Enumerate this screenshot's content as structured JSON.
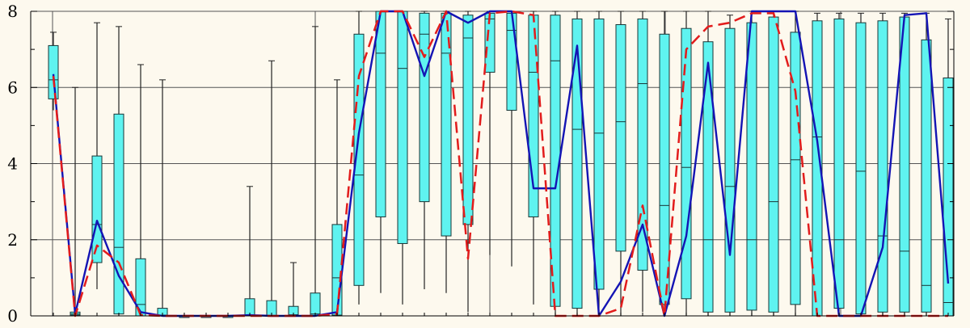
{
  "chart_data": {
    "type": "box",
    "title": "",
    "xlabel": "",
    "ylabel": "",
    "ylim": [
      0,
      8
    ],
    "yticks": [
      "0",
      "2",
      "4",
      "6",
      "8"
    ],
    "grid": true,
    "colors": {
      "box_fill": "#5ff3f0",
      "box_stroke": "#1a3535",
      "whisker": "#222222",
      "median_line": "#0d1f7a",
      "dashed_line": "#e21c1c",
      "grid": "#555555",
      "background": "#fdf9ee"
    },
    "boxes": [
      {
        "x": 1,
        "min": 5.4,
        "q1": 5.7,
        "median": 6.2,
        "q3": 7.1,
        "max": 7.45
      },
      {
        "x": 2,
        "min": 0.0,
        "q1": 0.02,
        "median": 0.05,
        "q3": 0.1,
        "max": 6.0
      },
      {
        "x": 3,
        "min": 0.7,
        "q1": 1.4,
        "median": 2.4,
        "q3": 4.2,
        "max": 7.7
      },
      {
        "x": 4,
        "min": 0.0,
        "q1": 0.05,
        "median": 1.8,
        "q3": 5.3,
        "max": 7.6
      },
      {
        "x": 5,
        "min": 0.0,
        "q1": 0.0,
        "median": 0.3,
        "q3": 1.5,
        "max": 6.6
      },
      {
        "x": 6,
        "min": 0.0,
        "q1": 0.0,
        "median": 0.02,
        "q3": 0.2,
        "max": 6.2
      },
      {
        "x": 7,
        "min": 0.0,
        "q1": 0.0,
        "median": 0.0,
        "q3": 0.0,
        "max": 0.0
      },
      {
        "x": 8,
        "min": 0.0,
        "q1": 0.0,
        "median": 0.0,
        "q3": 0.0,
        "max": 0.0
      },
      {
        "x": 9,
        "min": 0.0,
        "q1": 0.0,
        "median": 0.0,
        "q3": 0.0,
        "max": 0.0
      },
      {
        "x": 10,
        "min": 0.0,
        "q1": 0.0,
        "median": 0.02,
        "q3": 0.45,
        "max": 3.4
      },
      {
        "x": 11,
        "min": 0.0,
        "q1": 0.0,
        "median": 0.01,
        "q3": 0.4,
        "max": 6.7
      },
      {
        "x": 12,
        "min": 0.0,
        "q1": 0.0,
        "median": 0.03,
        "q3": 0.25,
        "max": 1.4
      },
      {
        "x": 13,
        "min": 0.0,
        "q1": 0.0,
        "median": 0.05,
        "q3": 0.6,
        "max": 7.6
      },
      {
        "x": 14,
        "min": 0.0,
        "q1": 0.02,
        "median": 1.0,
        "q3": 2.4,
        "max": 6.2
      },
      {
        "x": 15,
        "min": 0.3,
        "q1": 0.8,
        "median": 3.7,
        "q3": 7.4,
        "max": 8.0
      },
      {
        "x": 16,
        "min": 0.6,
        "q1": 2.6,
        "median": 6.9,
        "q3": 8.0,
        "max": 8.0
      },
      {
        "x": 17,
        "min": 0.3,
        "q1": 1.9,
        "median": 6.5,
        "q3": 8.0,
        "max": 8.0
      },
      {
        "x": 18,
        "min": 0.7,
        "q1": 3.0,
        "median": 7.4,
        "q3": 7.95,
        "max": 8.0
      },
      {
        "x": 19,
        "min": 0.6,
        "q1": 2.1,
        "median": 6.9,
        "q3": 7.95,
        "max": 8.0
      },
      {
        "x": 20,
        "min": 0.1,
        "q1": 2.4,
        "median": 7.3,
        "q3": 7.9,
        "max": 8.0
      },
      {
        "x": 21,
        "min": 1.6,
        "q1": 6.4,
        "median": 7.8,
        "q3": 7.95,
        "max": 8.0
      },
      {
        "x": 22,
        "min": 1.3,
        "q1": 5.4,
        "median": 7.5,
        "q3": 7.95,
        "max": 8.0
      },
      {
        "x": 23,
        "min": 0.3,
        "q1": 2.6,
        "median": 6.4,
        "q3": 7.9,
        "max": 8.0
      },
      {
        "x": 24,
        "min": 0.0,
        "q1": 0.25,
        "median": 6.7,
        "q3": 7.9,
        "max": 8.0
      },
      {
        "x": 25,
        "min": 0.0,
        "q1": 0.2,
        "median": 4.9,
        "q3": 7.8,
        "max": 8.0
      },
      {
        "x": 26,
        "min": 0.0,
        "q1": 0.7,
        "median": 4.8,
        "q3": 7.8,
        "max": 8.0
      },
      {
        "x": 27,
        "min": 0.0,
        "q1": 1.7,
        "median": 5.1,
        "q3": 7.65,
        "max": 8.0
      },
      {
        "x": 28,
        "min": 0.1,
        "q1": 1.2,
        "median": 6.1,
        "q3": 7.8,
        "max": 8.0
      },
      {
        "x": 29,
        "min": 0.0,
        "q1": 0.3,
        "median": 2.9,
        "q3": 7.4,
        "max": 8.0
      },
      {
        "x": 30,
        "min": 0.0,
        "q1": 0.45,
        "median": 3.9,
        "q3": 7.55,
        "max": 8.0
      },
      {
        "x": 31,
        "min": 0.0,
        "q1": 0.1,
        "median": 2.0,
        "q3": 7.2,
        "max": 8.0
      },
      {
        "x": 32,
        "min": 0.0,
        "q1": 0.1,
        "median": 3.4,
        "q3": 7.55,
        "max": 7.9
      },
      {
        "x": 33,
        "min": 0.0,
        "q1": 0.15,
        "median": 2.0,
        "q3": 7.7,
        "max": 8.0
      },
      {
        "x": 34,
        "min": 0.0,
        "q1": 0.1,
        "median": 3.0,
        "q3": 7.85,
        "max": 8.0
      },
      {
        "x": 35,
        "min": 0.0,
        "q1": 0.3,
        "median": 4.1,
        "q3": 7.45,
        "max": 8.0
      },
      {
        "x": 36,
        "min": 0.0,
        "q1": 0.0,
        "median": 4.7,
        "q3": 7.75,
        "max": 7.95
      },
      {
        "x": 37,
        "min": 0.0,
        "q1": 0.2,
        "median": 2.0,
        "q3": 7.8,
        "max": 7.95
      },
      {
        "x": 38,
        "min": 0.0,
        "q1": 0.05,
        "median": 3.8,
        "q3": 7.7,
        "max": 7.95
      },
      {
        "x": 39,
        "min": 0.0,
        "q1": 0.1,
        "median": 2.1,
        "q3": 7.75,
        "max": 7.95
      },
      {
        "x": 40,
        "min": 0.0,
        "q1": 0.1,
        "median": 1.7,
        "q3": 7.85,
        "max": 7.95
      },
      {
        "x": 41,
        "min": 0.0,
        "q1": 0.1,
        "median": 0.8,
        "q3": 7.25,
        "max": 7.95
      },
      {
        "x": 42,
        "min": 0.0,
        "q1": 0.0,
        "median": 0.35,
        "q3": 6.25,
        "max": 7.8
      }
    ],
    "series": [
      {
        "style": "solid",
        "color": "#1414b4",
        "values": [
          6.35,
          0.05,
          2.5,
          1.05,
          0.1,
          0.0,
          0.0,
          0.0,
          0.0,
          0.02,
          0.0,
          0.0,
          0.0,
          0.1,
          4.8,
          8.0,
          8.0,
          6.3,
          8.0,
          7.7,
          8.0,
          8.0,
          3.35,
          3.35,
          7.1,
          0.0,
          0.9,
          2.4,
          0.0,
          2.1,
          6.65,
          1.6,
          8.0,
          8.0,
          8.0,
          4.6,
          0.0,
          0.0,
          1.8,
          7.9,
          7.95,
          0.85
        ]
      },
      {
        "style": "dashed",
        "color": "#e21c1c",
        "values": [
          6.3,
          0.0,
          1.85,
          1.4,
          0.02,
          0.0,
          0.0,
          0.0,
          0.0,
          0.0,
          0.0,
          0.0,
          0.0,
          0.05,
          6.3,
          8.0,
          8.0,
          6.8,
          8.0,
          1.5,
          7.95,
          8.0,
          7.9,
          0.0,
          0.0,
          0.0,
          0.2,
          2.9,
          0.0,
          7.0,
          7.6,
          7.7,
          7.95,
          7.95,
          5.9,
          0.0,
          0.0,
          0.0,
          0.0,
          0.0,
          0.0,
          0.0
        ]
      }
    ]
  }
}
